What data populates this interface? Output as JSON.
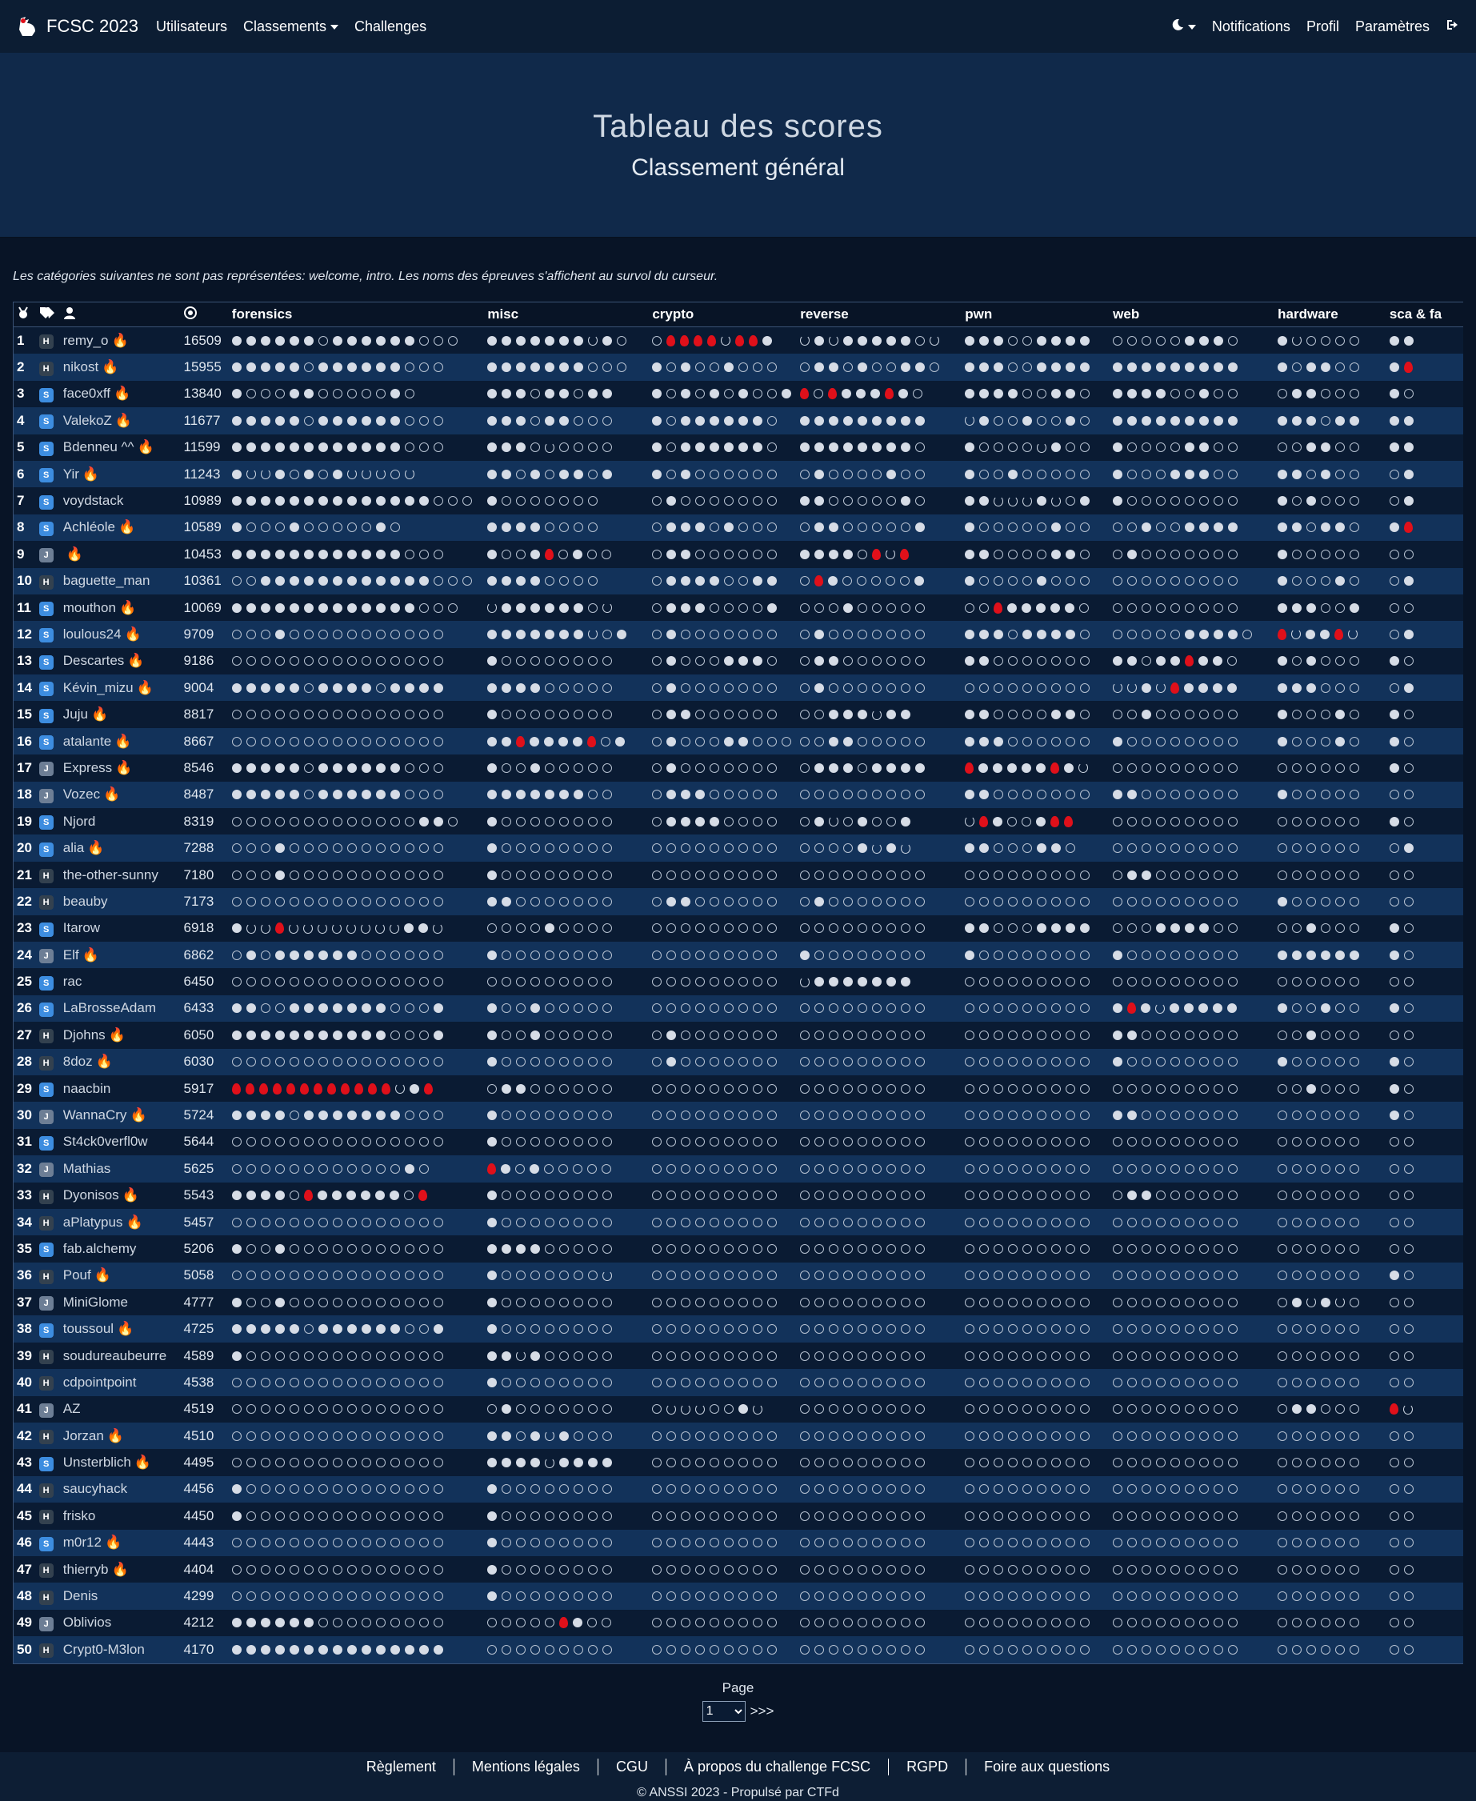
{
  "navbar": {
    "brand": "FCSC 2023",
    "left": [
      "Utilisateurs",
      "Classements",
      "Challenges"
    ],
    "right": [
      "Notifications",
      "Profil",
      "Paramètres"
    ]
  },
  "hero": {
    "title": "Tableau des scores",
    "subtitle": "Classement général"
  },
  "note": "Les catégories suivantes ne sont pas représentées: welcome, intro. Les noms des épreuves s'affichent au survol du curseur.",
  "board": {
    "categories": [
      "forensics",
      "misc",
      "crypto",
      "reverse",
      "pwn",
      "web",
      "hardware",
      "sca & fa"
    ],
    "rows": [
      {
        "rank": "1",
        "badge": "H",
        "name": "remy_o",
        "fire": true,
        "score": "16509",
        "cells": "ffffffeffffffeee ffffffftfe eddddtddf tftfffffet fffeeffff eeeeefffe fteeee ff"
      },
      {
        "rank": "2",
        "badge": "H",
        "name": "nikost",
        "fire": true,
        "score": "15955",
        "cells": "fffffeffffffeee fffffffeee fefeefeee effefeeffe fffeeffff fffffffff feffee fd"
      },
      {
        "rank": "3",
        "badge": "S",
        "name": "face0xff",
        "fire": true,
        "score": "13840",
        "cells": "feeeffeeeeefe fffeffeff fefefefeef dedfffdfe ffffeeffe ffffeefee effeee fe"
      },
      {
        "rank": "4",
        "badge": "S",
        "name": "ValekoZ",
        "fire": true,
        "score": "11677",
        "cells": "fffffeffffffeee fffeffeee feffffffe fffffffff tfeefeefe fffffffff fffeff ff"
      },
      {
        "rank": "5",
        "badge": "S",
        "name": "Bdenneu ^^",
        "fire": true,
        "score": "11599",
        "cells": "ffffffffffffeee fffeteeee feffffffe ffffffffe feeeetfee feeeeffee eeffee ff"
      },
      {
        "rank": "6",
        "badge": "S",
        "name": "Yir",
        "fire": true,
        "score": "11243",
        "cells": "fttfefeftttet ffefeffef fefeeeeee efeeeefee feefeeeee feeefffee ffefee ef"
      },
      {
        "rank": "7",
        "badge": "S",
        "name": "voydstack",
        "fire": false,
        "score": "10989",
        "cells": "ffffffffffffffeee feeeeeee efeeeeeee ffeeeeefe fftttftef feeeeeeee fefeee ef"
      },
      {
        "rank": "8",
        "badge": "S",
        "name": "Achléole",
        "fire": true,
        "score": "10589",
        "cells": "feeefeeeeefe ffffeeee efffefeee effeeeeef feeeeefee eefeeffff ffeffe fd"
      },
      {
        "rank": "9",
        "badge": "J",
        "name": "",
        "fire": true,
        "score": "10453",
        "cells": "ffffffffffffeee feefdefee effeeeeee ffffedtd ffeeeeffe efeeeeeee feeeee ee"
      },
      {
        "rank": "10",
        "badge": "H",
        "name": "baguette_man",
        "fire": false,
        "score": "10361",
        "cells": "eeffffffffffffeee ffffeeee effffeeff edfeeeeef feeeefeee eeeeeeeee feeefe ef"
      },
      {
        "rank": "11",
        "badge": "S",
        "name": "mouthon",
        "fire": true,
        "score": "10069",
        "cells": "fffffffffffffeee tffffffet efffeeeef eeefeeeee eedfffffe eeeeeeeee fffeef ee"
      },
      {
        "rank": "12",
        "badge": "S",
        "name": "loulous24",
        "fire": true,
        "score": "9709",
        "cells": "eeefeeeeeeeeeee ffffffftef efeeeeeee efeeeeeee fffeffffe eeeeeffffe dtffdt ef"
      },
      {
        "rank": "13",
        "badge": "S",
        "name": "Descartes",
        "fire": true,
        "score": "9186",
        "cells": "eeeeeeeeeeeeeee feeeeeeee efeeefffe effeeeeee ffeeeeeee ffeffdffe fefeee fe"
      },
      {
        "rank": "14",
        "badge": "S",
        "name": "Kévin_mizu",
        "fire": true,
        "score": "9004",
        "cells": "fffffeffffeffff ffffeeeee efeeeeeee efeeeeeee eeeeeeeee ttftdffff fffeee ef"
      },
      {
        "rank": "15",
        "badge": "S",
        "name": "Juju",
        "fire": true,
        "score": "8817",
        "cells": "eeeeeeeeeeeeeee feeeeeeee effeeeeee eeffftff ffeeeeffe eefeeeeee feeefe fe"
      },
      {
        "rank": "16",
        "badge": "S",
        "name": "atalante",
        "fire": true,
        "score": "8667",
        "cells": "eeeeeeeeeeeeeee ffdffffdef efeeeffeee eeffeeeee fffeeeeee feeeeeeee feeefe fe"
      },
      {
        "rank": "17",
        "badge": "J",
        "name": "Express",
        "fire": true,
        "score": "8546",
        "cells": "fffffeffffffeee feefeeeee efeeeeeee efffeffff dfffffdft eeeeeeeee eeeeee fe"
      },
      {
        "rank": "18",
        "badge": "J",
        "name": "Vozec",
        "fire": true,
        "score": "8487",
        "cells": "fffffeffffffeee fffffffee efffeeeee eeeeeeeee ffeeeeeee ffeeeeeee feeeee ee"
      },
      {
        "rank": "19",
        "badge": "S",
        "name": "Njord",
        "fire": false,
        "score": "8319",
        "cells": "eeeeeeeeeeeeeffe feeeeeeee effffeeee eftefeef tdfeefdd eeeeeeeee eeeeee fe"
      },
      {
        "rank": "20",
        "badge": "S",
        "name": "alia",
        "fire": true,
        "score": "7288",
        "cells": "eeefeeeeeeeeeee feeeeeeee eeeeeeeee eeeeftft ffeeeffe eeeeeeeee eeeeee ef"
      },
      {
        "rank": "21",
        "badge": "H",
        "name": "the-other-sunny",
        "fire": false,
        "score": "7180",
        "cells": "eeefeeeeeeeeeee feeeeeeee eeeeeeeee eeeeeeeee eeeeeeeee effeeeeee eeeeee ee"
      },
      {
        "rank": "22",
        "badge": "H",
        "name": "beauby",
        "fire": false,
        "score": "7173",
        "cells": "eeeeeeeeeeeeeee ffeeeeeee effeeeeee efeeeeeee eeeeeeeee eeeeeeeee feeeee ee"
      },
      {
        "rank": "23",
        "badge": "S",
        "name": "Itarow",
        "fire": false,
        "score": "6918",
        "cells": "fttdttttttttfft eeeefeeee eeeeeeeee eeeeeeeee ffeeeffff eeeffffee eefeee fe"
      },
      {
        "rank": "24",
        "badge": "J",
        "name": "Elf",
        "fire": true,
        "score": "6862",
        "cells": "efeffffffeeeeee feeeeeeee eeeeeeeee feeeeeeee feeeeeeee feeeeeeee ffffff fe"
      },
      {
        "rank": "25",
        "badge": "S",
        "name": "rac",
        "fire": false,
        "score": "6450",
        "cells": "eeeeeeeeeeeeeee eeeeeeeee eeeeeeeee tfffffff eeeeeeeee eeeeeeeee eeeeee ee"
      },
      {
        "rank": "26",
        "badge": "S",
        "name": "LaBrosseAdam",
        "fire": false,
        "score": "6433",
        "cells": "ffeefffffffeeef feefeeeee eeeeeeeee eeeeeeeee eeeeeeeee fdftfffff feefee fe"
      },
      {
        "rank": "27",
        "badge": "H",
        "name": "Djohns",
        "fire": true,
        "score": "6050",
        "cells": "fffffffffffeeef feefeeeee efeeeeeee eeeeeeeee eeeeeeeee ffeeeeeee eefeee ee"
      },
      {
        "rank": "28",
        "badge": "H",
        "name": "8doz",
        "fire": true,
        "score": "6030",
        "cells": "eeeeeeeeeeeeeee feeeeeeee efeeeeeee eeeeeeeee eeeeeeeee feeeeeeee feeeee fe"
      },
      {
        "rank": "29",
        "badge": "S",
        "name": "naacbin",
        "fire": false,
        "score": "5917",
        "cells": "ddddddddddddtfd effeeeeee eeeeeeeee eeeeeeeee eeeeeeeee eeeeeeeee eefeee fe"
      },
      {
        "rank": "30",
        "badge": "J",
        "name": "WannaCry",
        "fire": true,
        "score": "5724",
        "cells": "ffffefffffffeee feeeeeeee eeeeeeeee eeeeeeeee eeeeeeeee ffeeeeeee eeeeee fe"
      },
      {
        "rank": "31",
        "badge": "S",
        "name": "St4ck0verfl0w",
        "fire": false,
        "score": "5644",
        "cells": "eeeeeeeeeeeeeee feeeeeeee eeeeeeeee eeeeeeeee eeeeeeeee eeeeeeeee eeeeee ee"
      },
      {
        "rank": "32",
        "badge": "J",
        "name": "Mathias",
        "fire": false,
        "score": "5625",
        "cells": "eeeeeeeeeeeefe dfefeeeee eeeeeeeee eeeeeeeee eeeeeeeee eeeeeeeee eeeeee ee"
      },
      {
        "rank": "33",
        "badge": "H",
        "name": "Dyonisos",
        "fire": true,
        "score": "5543",
        "cells": "ffffedffffffed feeeeeeee eeeeeeeee eeeeeeeee eeeeeeeee effeeeeee eeeeee ee"
      },
      {
        "rank": "34",
        "badge": "H",
        "name": "aPlatypus",
        "fire": true,
        "score": "5457",
        "cells": "eeeeeeeeeeeeeee feeeeeeee eeeeeeeee eeeeeeeee eeeeeeeee eeeeeeeee eeeeee ee"
      },
      {
        "rank": "35",
        "badge": "S",
        "name": "fab.alchemy",
        "fire": false,
        "score": "5206",
        "cells": "feefeeeeeeeeeee ffffeeeee eeeeeeeee eeeeeeeee eeeeeeeee eeeeeeeee eeeeee ee"
      },
      {
        "rank": "36",
        "badge": "H",
        "name": "Pouf",
        "fire": true,
        "score": "5058",
        "cells": "eeeeeeeeeeeeeee feeeeeeet eeeeeeeee eeeeeeeee eeeeeeeee eeeeeeeee eeeeee fe"
      },
      {
        "rank": "37",
        "badge": "J",
        "name": "MiniGlome",
        "fire": false,
        "score": "4777",
        "cells": "feefeeeeeeeeeee feeeeeeee eeeeeeeee eeeeeeeee eeeeeeeee eeeeeeeee eftfte ee"
      },
      {
        "rank": "38",
        "badge": "S",
        "name": "toussoul",
        "fire": true,
        "score": "4725",
        "cells": "fffffeffffffeef feeeeeeee eeeeeeeee eeeeeeeee eeeeeeeee eeeeeeeee eeeeee ee"
      },
      {
        "rank": "39",
        "badge": "H",
        "name": "soudureaubeurre",
        "fire": false,
        "score": "4589",
        "cells": "feeeeeeeeeeeeee fftfeeeee eeeeeeeee eeeeeeeee eeeeeeeee eeeeeeeee eeeeee ee"
      },
      {
        "rank": "40",
        "badge": "H",
        "name": "cdpointpoint",
        "fire": false,
        "score": "4538",
        "cells": "eeeeeeeeeeeeeee feeeeeeee eeeeeeeee eeeeeeeee eeeeeeeee eeeeeeeee eeeeee ee"
      },
      {
        "rank": "41",
        "badge": "J",
        "name": "AZ",
        "fire": false,
        "score": "4519",
        "cells": "eeeeeeeeeeeeeee efeeeeeee ettteeft eeeeeeeee eeeeeeeee eeeeeeeee effeee dt"
      },
      {
        "rank": "42",
        "badge": "H",
        "name": "Jorzan",
        "fire": true,
        "score": "4510",
        "cells": "eeeeeeeeeeeeeee ffeftfeee eeeeeeeee eeeeeeeee eeeeeeeee eeeeeeeee eeeeee ee"
      },
      {
        "rank": "43",
        "badge": "S",
        "name": "Unsterblich",
        "fire": true,
        "score": "4495",
        "cells": "eeeeeeeeeeeeeee fffftffff eeeeeeeee eeeeeeeee eeeeeeeee eeeeeeeee eeeeee ee"
      },
      {
        "rank": "44",
        "badge": "H",
        "name": "saucyhack",
        "fire": false,
        "score": "4456",
        "cells": "feeeeeeeeeeeeee feeeeeeee eeeeeeeee eeeeeeeee eeeeeeeee eeeeeeeee eeeeee ee"
      },
      {
        "rank": "45",
        "badge": "H",
        "name": "frisko",
        "fire": false,
        "score": "4450",
        "cells": "feeeeeeeeeeeeee feeeeeeee eeeeeeeee eeeeeeeee eeeeeeeee eeeeeeeee eeeeee ee"
      },
      {
        "rank": "46",
        "badge": "S",
        "name": "m0r12",
        "fire": true,
        "score": "4443",
        "cells": "eeeeeeeeeeeeeee feeeeeeee eeeeeeeee eeeeeeeee eeeeeeeee eeeeeeeee eeeeee ee"
      },
      {
        "rank": "47",
        "badge": "H",
        "name": "thierryb",
        "fire": true,
        "score": "4404",
        "cells": "eeeeeeeeeeeeeee feeeeeeee eeeeeeeee eeeeeeeee eeeeeeeee eeeeeeeee eeeeee ee"
      },
      {
        "rank": "48",
        "badge": "H",
        "name": "Denis",
        "fire": false,
        "score": "4299",
        "cells": "eeeeeeeeeeeeeee feeeeeeee eeeeeeeee eeeeeeeee eeeeeeeee eeeeeeeee eeeeee ee"
      },
      {
        "rank": "49",
        "badge": "J",
        "name": "Oblivios",
        "fire": false,
        "score": "4212",
        "cells": "ffffffeeeeeeeee eeeeedfee eeeeeeeee eeeeeeeee eeeeeeeee eeeeeeeee eeeeee ee"
      },
      {
        "rank": "50",
        "badge": "H",
        "name": "Crypt0-M3lon",
        "fire": false,
        "score": "4170",
        "cells": "fffffffffffffff eeeeeeeee eeeeeeeee eeeeeeeee eeeeeeeee eeeeeeeee eeeeee ee"
      }
    ]
  },
  "pager": {
    "label": "Page",
    "value": "1",
    "next": ">>>"
  },
  "footer": {
    "links": [
      "Règlement",
      "Mentions légales",
      "CGU",
      "À propos du challenge FCSC",
      "RGPD",
      "Foire aux questions"
    ],
    "copyright": "© ANSSI 2023 - Propulsé par CTFd"
  }
}
